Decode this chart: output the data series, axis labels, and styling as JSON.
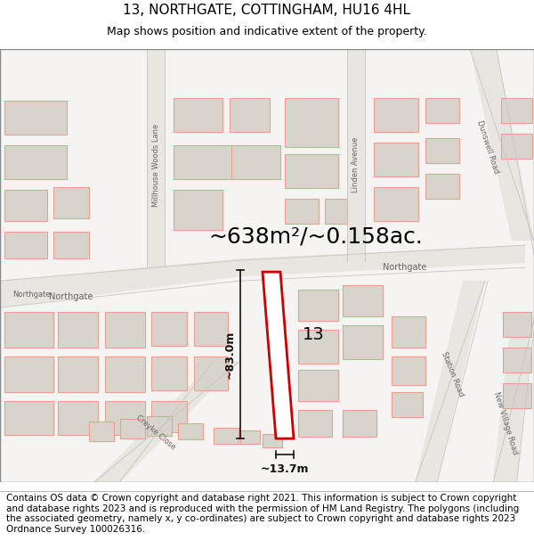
{
  "title": "13, NORTHGATE, COTTINGHAM, HU16 4HL",
  "subtitle": "Map shows position and indicative extent of the property.",
  "area_text": "~638m²/~0.158ac.",
  "dim_vertical": "~83.0m",
  "dim_horizontal": "~13.7m",
  "property_number": "13",
  "bg_color": "#f5f4f2",
  "road_fill": "#e8e6e1",
  "road_line": "#c8c4bc",
  "building_fill": "#d8d4cc",
  "building_edge": "#e8a090",
  "highlight_color": "#cc0000",
  "dim_color": "#111111",
  "text_color": "#333333",
  "road_label_color": "#666666",
  "footer_text": "Contains OS data © Crown copyright and database right 2021. This information is subject to Crown copyright and database rights 2023 and is reproduced with the permission of HM Land Registry. The polygons (including the associated geometry, namely x, y co-ordinates) are subject to Crown copyright and database rights 2023 Ordnance Survey 100026316.",
  "title_fontsize": 11,
  "subtitle_fontsize": 9,
  "footer_fontsize": 7.5,
  "area_fontsize": 18,
  "dim_fontsize": 9,
  "number_fontsize": 14,
  "road_label_fontsize": 7
}
